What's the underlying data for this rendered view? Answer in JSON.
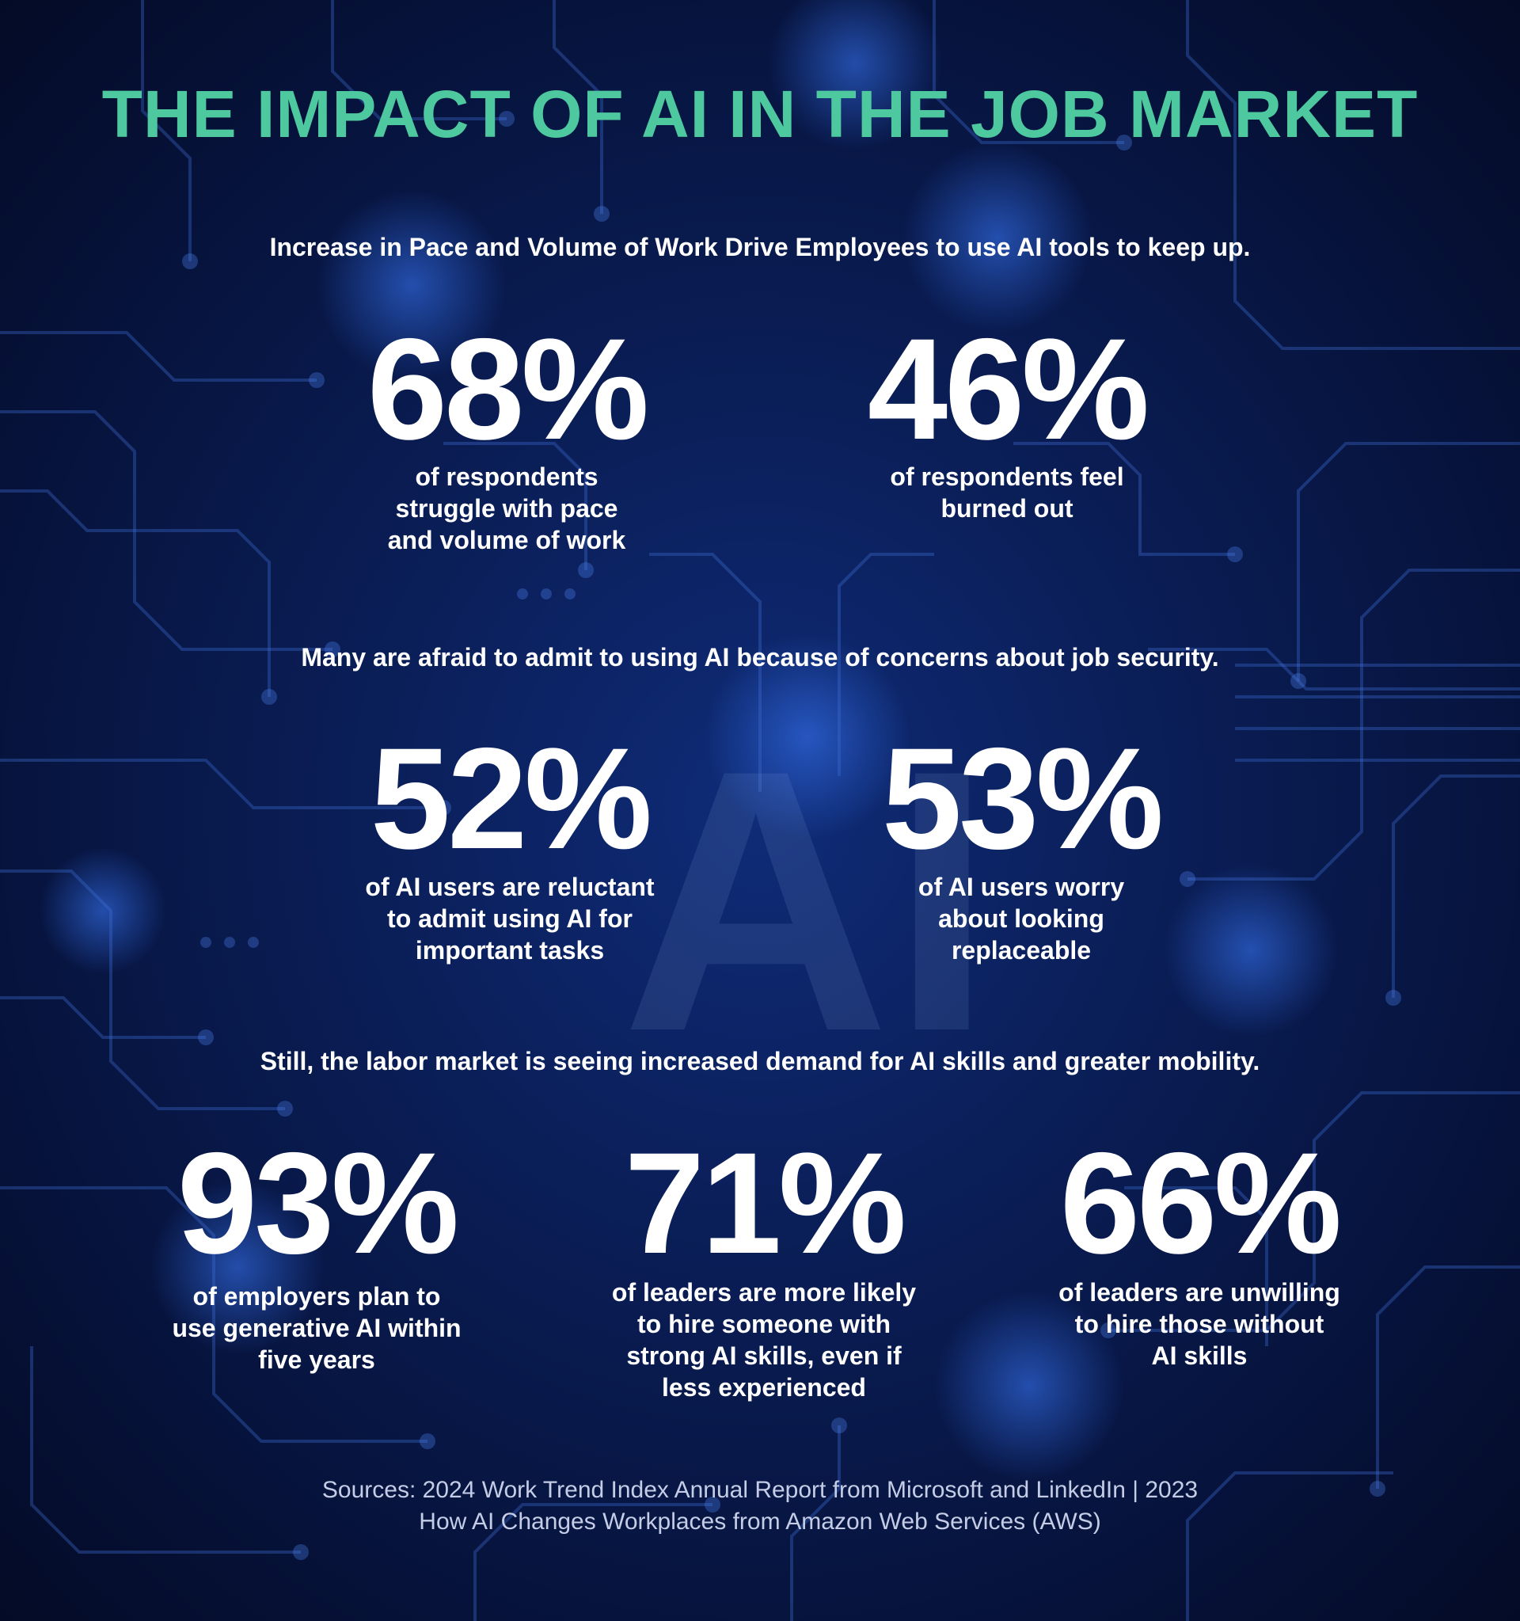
{
  "colors": {
    "title": "#4ec89e",
    "text": "#ffffff",
    "background": "#0a1d55",
    "circuit": "#3f6fd6"
  },
  "background": {
    "watermark_letters": "AI"
  },
  "title": "THE IMPACT OF AI IN THE JOB MARKET",
  "sections": [
    {
      "heading": "Increase in Pace and Volume of Work Drive Employees to use AI tools to keep up.",
      "stats": [
        {
          "value": "68%",
          "lines": [
            "of respondents",
            "struggle with pace",
            "and volume of work"
          ]
        },
        {
          "value": "46%",
          "lines": [
            "of respondents feel",
            "burned out"
          ]
        }
      ]
    },
    {
      "heading": "Many are afraid to admit to using AI because of concerns about job security.",
      "stats": [
        {
          "value": "52%",
          "lines": [
            "of AI users are reluctant",
            "to admit using AI for",
            "important tasks"
          ]
        },
        {
          "value": "53%",
          "lines": [
            "of AI users worry",
            "about looking",
            "replaceable"
          ]
        }
      ]
    },
    {
      "heading": "Still, the labor market is seeing increased demand for AI skills and greater mobility.",
      "stats": [
        {
          "value": "93%",
          "lines": [
            "of employers plan to",
            "use generative AI within",
            "five years"
          ]
        },
        {
          "value": "71%",
          "lines": [
            "of leaders are more likely",
            "to hire someone with",
            "strong AI skills, even if",
            "less experienced"
          ]
        },
        {
          "value": "66%",
          "lines": [
            "of leaders are unwilling",
            "to hire those without",
            "AI skills"
          ]
        }
      ]
    }
  ],
  "sources": [
    "Sources: 2024 Work Trend Index Annual Report from Microsoft and LinkedIn | 2023",
    "How AI Changes Workplaces from Amazon Web Services (AWS)"
  ]
}
